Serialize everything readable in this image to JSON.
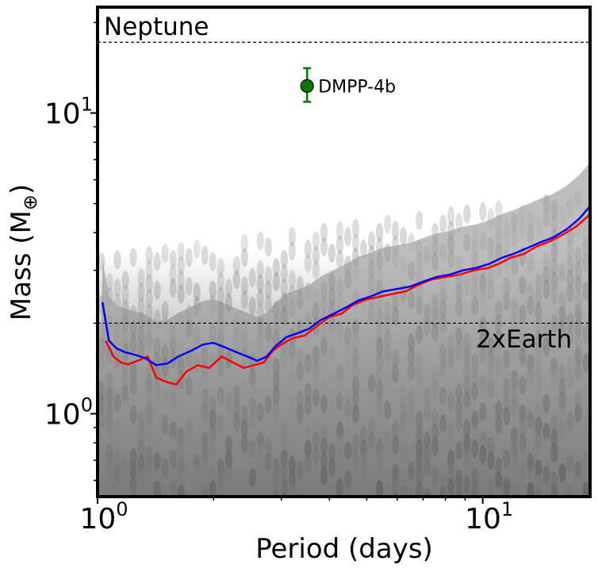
{
  "chart_data": {
    "type": "line",
    "xscale": "log",
    "yscale": "log",
    "xlim": [
      1.0,
      19.0
    ],
    "ylim": [
      0.53,
      22.5
    ],
    "xlabel": "Period (days)",
    "ylabel_main": "Mass (M",
    "ylabel_symbol": "⊕",
    "ylabel_close": ")",
    "x_ticks": [
      {
        "value": 1,
        "base": "10",
        "exp": "0"
      },
      {
        "value": 10,
        "base": "10",
        "exp": "1"
      }
    ],
    "y_ticks": [
      {
        "value": 1,
        "base": "10",
        "exp": "0"
      },
      {
        "value": 10,
        "base": "10",
        "exp": "1"
      }
    ],
    "reference_lines": [
      {
        "name": "Neptune",
        "y": 17.2
      },
      {
        "name": "2xEarth",
        "y": 2.0
      }
    ],
    "planet": {
      "name": "DMPP-4b",
      "x": 3.5,
      "y": 12.3,
      "y_lo": 10.9,
      "y_hi": 14.1,
      "color": "#007a00"
    },
    "series": [
      {
        "name": "red",
        "color": "#ff0000",
        "x": [
          1.05,
          1.1,
          1.15,
          1.2,
          1.27,
          1.35,
          1.42,
          1.5,
          1.6,
          1.7,
          1.82,
          1.95,
          2.1,
          2.25,
          2.4,
          2.55,
          2.7,
          2.85,
          3.0,
          3.2,
          3.45,
          3.7,
          4.0,
          4.3,
          4.6,
          5.0,
          5.4,
          5.8,
          6.3,
          6.8,
          7.4,
          8.0,
          8.7,
          9.5,
          10.3,
          11.0,
          11.8,
          12.8,
          13.8,
          15.0,
          16.2,
          17.5,
          19.0
        ],
        "y": [
          1.75,
          1.55,
          1.48,
          1.46,
          1.5,
          1.55,
          1.32,
          1.28,
          1.25,
          1.38,
          1.45,
          1.42,
          1.55,
          1.48,
          1.42,
          1.45,
          1.48,
          1.62,
          1.7,
          1.78,
          1.82,
          1.95,
          2.1,
          2.15,
          2.3,
          2.4,
          2.45,
          2.5,
          2.55,
          2.68,
          2.8,
          2.85,
          2.9,
          3.0,
          3.05,
          3.15,
          3.3,
          3.4,
          3.6,
          3.75,
          3.95,
          4.2,
          4.6
        ]
      },
      {
        "name": "blue",
        "color": "#0000ff",
        "x": [
          1.03,
          1.07,
          1.12,
          1.18,
          1.25,
          1.33,
          1.42,
          1.52,
          1.62,
          1.75,
          1.88,
          2.0,
          2.15,
          2.3,
          2.45,
          2.6,
          2.75,
          2.9,
          3.1,
          3.3,
          3.55,
          3.8,
          4.1,
          4.4,
          4.75,
          5.1,
          5.5,
          6.0,
          6.5,
          7.0,
          7.6,
          8.2,
          8.9,
          9.6,
          10.4,
          11.2,
          12.0,
          13.0,
          14.0,
          15.2,
          16.5,
          17.8,
          19.0
        ],
        "y": [
          2.35,
          1.75,
          1.65,
          1.6,
          1.57,
          1.53,
          1.45,
          1.47,
          1.55,
          1.62,
          1.7,
          1.72,
          1.66,
          1.6,
          1.55,
          1.5,
          1.55,
          1.68,
          1.8,
          1.85,
          1.92,
          2.05,
          2.15,
          2.25,
          2.38,
          2.45,
          2.55,
          2.6,
          2.65,
          2.75,
          2.85,
          2.9,
          3.0,
          3.05,
          3.15,
          3.3,
          3.4,
          3.55,
          3.7,
          3.85,
          4.1,
          4.45,
          4.9
        ]
      }
    ]
  }
}
